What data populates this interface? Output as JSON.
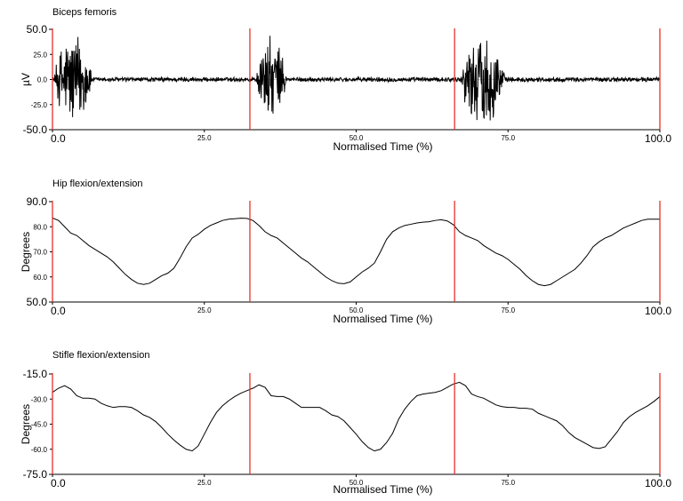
{
  "chart_data": [
    {
      "type": "line",
      "title": "Biceps femoris",
      "xlabel": "Normalised Time (%)",
      "ylabel": "µV",
      "xlim": [
        0,
        100
      ],
      "ylim": [
        -50,
        50
      ],
      "grid": false,
      "zero_line": true,
      "x_major_ticks": [
        {
          "value": 0,
          "label": "0.0"
        },
        {
          "value": 100,
          "label": "100.0"
        }
      ],
      "x_minor_ticks": [
        {
          "value": 25,
          "label": "25.0"
        },
        {
          "value": 50,
          "label": "50.0"
        },
        {
          "value": 75,
          "label": "75.0"
        }
      ],
      "y_major_ticks": [
        {
          "value": 50,
          "label": "50.0"
        },
        {
          "value": -50,
          "label": "-50.0"
        }
      ],
      "y_minor_ticks": [
        {
          "value": 25,
          "label": "25.0"
        },
        {
          "value": 0,
          "label": "0.0"
        },
        {
          "value": -25,
          "label": "-25.0"
        }
      ],
      "event_markers": [
        0,
        32.5,
        66.2,
        100
      ],
      "signal": {
        "kind": "emg",
        "baseline_noise": 2.5,
        "bursts": [
          {
            "start": 0.3,
            "end": 6.5,
            "peak": 52,
            "clip_min": -50
          },
          {
            "start": 33.5,
            "end": 38.5,
            "peak": 45,
            "clip_min": -50
          },
          {
            "start": 67.2,
            "end": 74.5,
            "peak": 50,
            "clip_min": -50
          }
        ]
      }
    },
    {
      "type": "line",
      "title": "Hip flexion/extension",
      "xlabel": "Normalised Time (%)",
      "ylabel": "Degrees",
      "xlim": [
        0,
        100
      ],
      "ylim": [
        50,
        90
      ],
      "grid": false,
      "x_major_ticks": [
        {
          "value": 0,
          "label": "0.0"
        },
        {
          "value": 100,
          "label": "100.0"
        }
      ],
      "x_minor_ticks": [
        {
          "value": 25,
          "label": "25.0"
        },
        {
          "value": 50,
          "label": "50.0"
        },
        {
          "value": 75,
          "label": "75.0"
        }
      ],
      "y_major_ticks": [
        {
          "value": 90,
          "label": "90.0"
        },
        {
          "value": 50,
          "label": "50.0"
        }
      ],
      "y_minor_ticks": [
        {
          "value": 80,
          "label": "80.0"
        },
        {
          "value": 70,
          "label": "70.0"
        },
        {
          "value": 60,
          "label": "60.0"
        }
      ],
      "event_markers": [
        0,
        32.5,
        66.2,
        100
      ],
      "x": [
        0,
        1,
        2,
        3,
        4,
        5,
        6,
        7,
        8,
        9,
        10,
        11,
        12,
        13,
        14,
        15,
        16,
        17,
        18,
        19,
        20,
        21,
        22,
        23,
        24,
        25,
        26,
        27,
        28,
        29,
        30,
        31,
        32,
        33,
        34,
        35,
        36,
        37,
        38,
        39,
        40,
        41,
        42,
        43,
        44,
        45,
        46,
        47,
        48,
        49,
        50,
        51,
        52,
        53,
        54,
        55,
        56,
        57,
        58,
        59,
        60,
        61,
        62,
        63,
        64,
        65,
        66,
        67,
        68,
        69,
        70,
        71,
        72,
        73,
        74,
        75,
        76,
        77,
        78,
        79,
        80,
        81,
        82,
        83,
        84,
        85,
        86,
        87,
        88,
        89,
        90,
        91,
        92,
        93,
        94,
        95,
        96,
        97,
        98,
        99,
        100
      ],
      "y": [
        83.5,
        82.5,
        80,
        77.5,
        76.5,
        74.5,
        72.5,
        71,
        69.5,
        68,
        66,
        63.5,
        61,
        59,
        57.5,
        57,
        57.5,
        59,
        60.5,
        61.5,
        63.5,
        67.5,
        72,
        75.5,
        77,
        79,
        80.5,
        81.5,
        82.5,
        83,
        83.2,
        83.4,
        83.3,
        82.5,
        80.5,
        78,
        76.5,
        75.5,
        73.5,
        71.5,
        69.5,
        67.5,
        66,
        64,
        62,
        60,
        58.5,
        57.5,
        57.3,
        58,
        60,
        62,
        63.5,
        65.5,
        70,
        75,
        78,
        79.5,
        80.5,
        81,
        81.5,
        81.8,
        82,
        82.5,
        82.8,
        82.3,
        80.8,
        78,
        76.5,
        75.5,
        74.5,
        72.5,
        71,
        69.5,
        68.5,
        67,
        65,
        63,
        60.5,
        58.5,
        57,
        56.5,
        57,
        58.5,
        60,
        61.5,
        63,
        65.5,
        68.5,
        72,
        74,
        75.5,
        76.5,
        78,
        79.5,
        80.5,
        81.5,
        82.5,
        83,
        83,
        83
      ]
    },
    {
      "type": "line",
      "title": "Stifle flexion/extension",
      "xlabel": "Normalised Time (%)",
      "ylabel": "Degrees",
      "xlim": [
        0,
        100
      ],
      "ylim": [
        -75,
        -15
      ],
      "grid": false,
      "x_major_ticks": [
        {
          "value": 0,
          "label": "0.0"
        },
        {
          "value": 100,
          "label": "100.0"
        }
      ],
      "x_minor_ticks": [
        {
          "value": 25,
          "label": "25.0"
        },
        {
          "value": 50,
          "label": "50.0"
        },
        {
          "value": 75,
          "label": "75.0"
        }
      ],
      "y_major_ticks": [
        {
          "value": -15,
          "label": "-15.0"
        },
        {
          "value": -75,
          "label": "-75.0"
        }
      ],
      "y_minor_ticks": [
        {
          "value": -30,
          "label": "-30.0"
        },
        {
          "value": -45,
          "label": "-45.0"
        },
        {
          "value": -60,
          "label": "-60.0"
        }
      ],
      "event_markers": [
        0,
        32.5,
        66.2,
        100
      ],
      "x": [
        0,
        1,
        2,
        3,
        4,
        5,
        6,
        7,
        8,
        9,
        10,
        11,
        12,
        13,
        14,
        15,
        16,
        17,
        18,
        19,
        20,
        21,
        22,
        23,
        24,
        25,
        26,
        27,
        28,
        29,
        30,
        31,
        32,
        33,
        34,
        35,
        36,
        37,
        38,
        39,
        40,
        41,
        42,
        43,
        44,
        45,
        46,
        47,
        48,
        49,
        50,
        51,
        52,
        53,
        54,
        55,
        56,
        57,
        58,
        59,
        60,
        61,
        62,
        63,
        64,
        65,
        66,
        67,
        68,
        69,
        70,
        71,
        72,
        73,
        74,
        75,
        76,
        77,
        78,
        79,
        80,
        81,
        82,
        83,
        84,
        85,
        86,
        87,
        88,
        89,
        90,
        91,
        92,
        93,
        94,
        95,
        96,
        97,
        98,
        99,
        100
      ],
      "y": [
        -26,
        -23.5,
        -22,
        -24,
        -28,
        -29.5,
        -29.5,
        -30,
        -32.5,
        -34,
        -35,
        -34.5,
        -34.5,
        -35,
        -37,
        -39.5,
        -41,
        -43.5,
        -47,
        -51,
        -54.5,
        -57.5,
        -60,
        -61,
        -58,
        -51,
        -44,
        -38,
        -34,
        -31,
        -28.5,
        -26.5,
        -25,
        -23.5,
        -21.5,
        -23,
        -28,
        -28.5,
        -28.5,
        -30,
        -32.5,
        -35,
        -35,
        -35,
        -35,
        -37,
        -39.5,
        -40.5,
        -43,
        -47,
        -51,
        -55.5,
        -59,
        -61,
        -60,
        -56,
        -50.5,
        -42,
        -36,
        -31.5,
        -28,
        -27,
        -26.5,
        -26,
        -25,
        -23,
        -21,
        -20,
        -22,
        -27,
        -28.5,
        -29.5,
        -31.5,
        -33.5,
        -34.5,
        -35,
        -35,
        -35.5,
        -35.5,
        -36,
        -38.5,
        -40,
        -41.5,
        -43,
        -46,
        -50,
        -53,
        -55,
        -57,
        -59,
        -59.5,
        -58.5,
        -54,
        -49.5,
        -44,
        -40.5,
        -38,
        -36,
        -34,
        -31.5,
        -28.5
      ]
    }
  ]
}
